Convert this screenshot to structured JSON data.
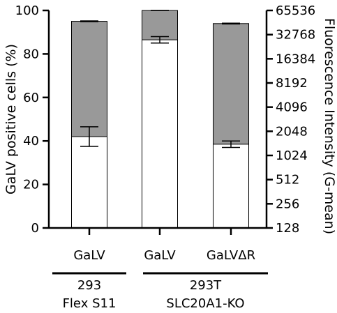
{
  "chart_data": {
    "type": "bar",
    "categories": [
      "GaLV",
      "GaLV",
      "GaLVΔR"
    ],
    "groups": [
      {
        "label_line1": "293",
        "label_line2": "Flex S11",
        "categories": [
          0
        ]
      },
      {
        "label_line1": "293T",
        "label_line2": "SLC20A1-KO",
        "categories": [
          1,
          2
        ]
      }
    ],
    "ylabel_left": "GaLV positive cells (%)",
    "ylabel_right": "Fluorescence Intensity (G-mean)",
    "left_axis": {
      "ylim": [
        0,
        100
      ],
      "ticks": [
        0,
        20,
        40,
        60,
        80,
        100
      ],
      "tick_labels": [
        "0",
        "20",
        "40",
        "60",
        "80",
        "100"
      ]
    },
    "right_axis": {
      "scale": "log2",
      "ylim": [
        128,
        65536
      ],
      "ticks": [
        128,
        256,
        512,
        1024,
        2048,
        4096,
        8192,
        16384,
        32768,
        65536
      ],
      "tick_labels": [
        "128",
        "256",
        "512",
        "1024",
        "2048",
        "4096",
        "8192",
        "16384",
        "32768",
        "65536"
      ]
    },
    "series": [
      {
        "axis": "left",
        "color": "#ffffff",
        "values": [
          42,
          86.5,
          38.5
        ],
        "error": [
          4.5,
          1.5,
          1.5
        ]
      },
      {
        "axis": "right",
        "color": "#999999",
        "values": [
          48000,
          65536,
          45000
        ],
        "error": [
          500,
          0,
          500
        ]
      }
    ],
    "grid": false,
    "legend": "none"
  }
}
